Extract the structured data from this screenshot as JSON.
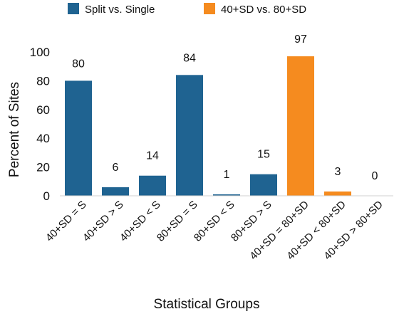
{
  "chart_data": {
    "type": "bar",
    "title": "",
    "xlabel": "Statistical Groups",
    "ylabel": "Percent of Sites",
    "ylim": [
      0,
      100
    ],
    "yticks": [
      0,
      20,
      40,
      60,
      80,
      100
    ],
    "grid": false,
    "legend_position": "top",
    "categories": [
      "40+SD = S",
      "40+SD > S",
      "40+SD < S",
      "80+SD = S",
      "80+SD < S",
      "80+SD > S",
      "40+SD = 80+SD",
      "40+SD < 80+SD",
      "40+SD > 80+SD"
    ],
    "series": [
      {
        "name": "Split vs. Single",
        "color": "#1f6391",
        "values": [
          80,
          6,
          14,
          84,
          1,
          15,
          null,
          null,
          null
        ]
      },
      {
        "name": "40+SD vs. 80+SD",
        "color": "#f58b1f",
        "values": [
          null,
          null,
          null,
          null,
          null,
          null,
          97,
          3,
          0
        ]
      }
    ],
    "data_labels": [
      "80",
      "6",
      "14",
      "84",
      "1",
      "15",
      "97",
      "3",
      "0"
    ]
  }
}
